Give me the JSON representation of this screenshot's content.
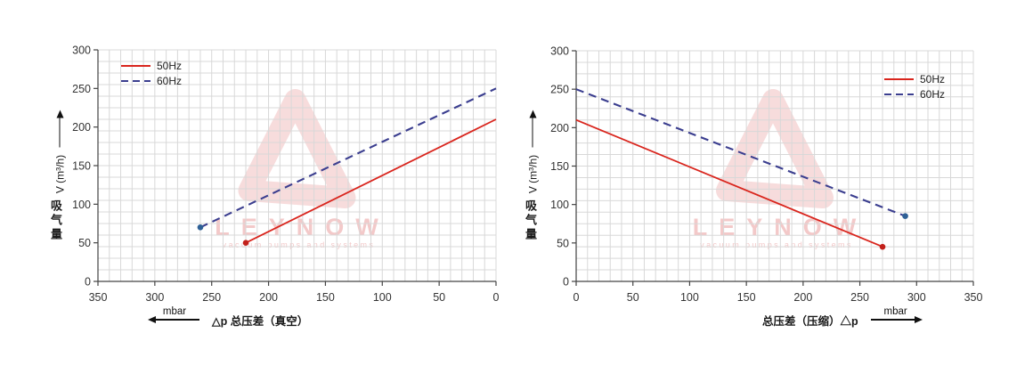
{
  "watermark": {
    "title": "LEYNOW",
    "tagline": "vacuum pumps and systems"
  },
  "colors": {
    "red": "#d9251d",
    "navy": "#3b3e8f",
    "red_dot": "#c2201a",
    "blue_dot": "#2e6096",
    "grid": "#d8d8d8",
    "axis": "#444444",
    "tick_text": "#333333",
    "watermark_logo": "#f7dcdc",
    "watermark_text": "#f3c9c9"
  },
  "chart_data": [
    {
      "type": "line",
      "title": "",
      "ylabel_cjk": "吸气量",
      "ylabel_latin": "V (m³/h)",
      "xlabel": "△p 总压差（真空）",
      "x_unit": "mbar",
      "x_unit_arrow": "left",
      "x_axis": {
        "min": 0,
        "max": 350,
        "reversed": true,
        "tick_step": 50,
        "minor_step": 10,
        "ticks": [
          350,
          300,
          250,
          200,
          150,
          100,
          50,
          0
        ]
      },
      "y_axis": {
        "min": 0,
        "max": 300,
        "tick_step": 50,
        "minor_step": 15,
        "ticks": [
          0,
          50,
          100,
          150,
          200,
          250,
          300
        ]
      },
      "legend_position": "top-left",
      "series": [
        {
          "name": "50Hz",
          "style": "solid",
          "color": "#d9251d",
          "points": [
            [
              220,
              50
            ],
            [
              0,
              210
            ]
          ],
          "marker": {
            "x": 220,
            "y": 50,
            "color": "#c2201a"
          }
        },
        {
          "name": "60Hz",
          "style": "dashed",
          "color": "#3b3e8f",
          "points": [
            [
              260,
              70
            ],
            [
              0,
              250
            ]
          ],
          "marker": {
            "x": 260,
            "y": 70,
            "color": "#2e6096"
          }
        }
      ]
    },
    {
      "type": "line",
      "title": "",
      "ylabel_cjk": "吸气量",
      "ylabel_latin": "V (m³/h)",
      "xlabel": "总压差（压缩）△p",
      "x_unit": "mbar",
      "x_unit_arrow": "right",
      "x_axis": {
        "min": 0,
        "max": 350,
        "reversed": false,
        "tick_step": 50,
        "minor_step": 10,
        "ticks": [
          0,
          50,
          100,
          150,
          200,
          250,
          300,
          350
        ]
      },
      "y_axis": {
        "min": 0,
        "max": 300,
        "tick_step": 50,
        "minor_step": 15,
        "ticks": [
          0,
          50,
          100,
          150,
          200,
          250,
          300
        ]
      },
      "legend_position": "top-right",
      "series": [
        {
          "name": "50Hz",
          "style": "solid",
          "color": "#d9251d",
          "points": [
            [
              0,
              210
            ],
            [
              270,
              45
            ]
          ],
          "marker": {
            "x": 270,
            "y": 45,
            "color": "#c2201a"
          }
        },
        {
          "name": "60Hz",
          "style": "dashed",
          "color": "#3b3e8f",
          "points": [
            [
              0,
              250
            ],
            [
              290,
              85
            ]
          ],
          "marker": {
            "x": 290,
            "y": 85,
            "color": "#2e6096"
          }
        }
      ]
    }
  ]
}
